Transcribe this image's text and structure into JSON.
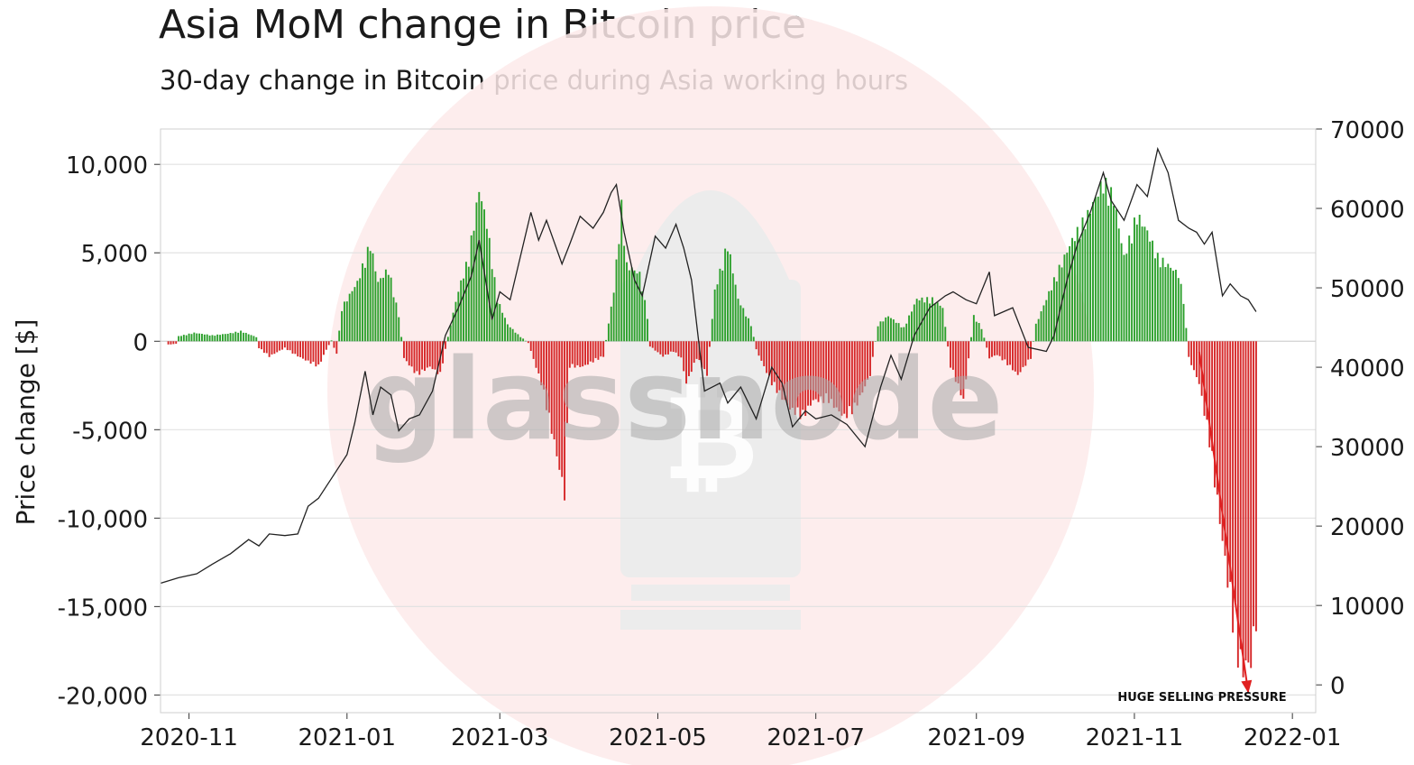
{
  "title": "Asia MoM change in Bitcoin price",
  "subtitle": "30-day change in Bitcoin price during Asia working hours",
  "watermark": {
    "text": "glassnode"
  },
  "chart_data": {
    "type": "bar",
    "ylabel": "Price change [$]",
    "x_ticks": [
      "2020-11",
      "2021-01",
      "2021-03",
      "2021-05",
      "2021-07",
      "2021-09",
      "2021-11",
      "2022-01"
    ],
    "y_ticks": [
      "10,000",
      "5,000",
      "0",
      "-5,000",
      "-10,000",
      "-15,000",
      "-20,000"
    ],
    "y2_ticks": [
      "70000",
      "60000",
      "50000",
      "40000",
      "30000",
      "20000",
      "10000",
      "0"
    ],
    "ylim": [
      -21000,
      12000
    ],
    "y2lim": [
      -3500,
      70000
    ],
    "xlim": [
      "2020-10-21",
      "2022-01-10"
    ],
    "grid": true,
    "colors": {
      "positive": "#2ca02c",
      "negative": "#d62728",
      "price": "#222222",
      "annotation": "#e02020"
    },
    "annotation": {
      "text": "HUGE SELLING PRESSURE",
      "arrow_from": [
        "2021-11-26",
        -600
      ],
      "arrow_to": [
        "2021-12-15",
        -19900
      ]
    },
    "bar_anchors": [
      [
        "2020-10-24",
        -200
      ],
      [
        "2020-10-27",
        -150
      ],
      [
        "2020-10-28",
        300
      ],
      [
        "2020-11-03",
        500
      ],
      [
        "2020-11-10",
        350
      ],
      [
        "2020-11-16",
        450
      ],
      [
        "2020-11-21",
        600
      ],
      [
        "2020-11-27",
        250
      ],
      [
        "2020-11-28",
        -400
      ],
      [
        "2020-12-02",
        -900
      ],
      [
        "2020-12-08",
        -400
      ],
      [
        "2020-12-12",
        -800
      ],
      [
        "2020-12-17",
        -1200
      ],
      [
        "2020-12-21",
        -1500
      ],
      [
        "2020-12-24",
        -500
      ],
      [
        "2020-12-26",
        50
      ],
      [
        "2020-12-28",
        -800
      ],
      [
        "2020-12-30",
        2000
      ],
      [
        "2021-01-05",
        3500
      ],
      [
        "2021-01-10",
        5800
      ],
      [
        "2021-01-13",
        3500
      ],
      [
        "2021-01-17",
        4300
      ],
      [
        "2021-01-21",
        1500
      ],
      [
        "2021-01-23",
        -1000
      ],
      [
        "2021-01-28",
        -2000
      ],
      [
        "2021-02-02",
        -1500
      ],
      [
        "2021-02-06",
        -2000
      ],
      [
        "2021-02-10",
        1000
      ],
      [
        "2021-02-13",
        3000
      ],
      [
        "2021-02-17",
        5000
      ],
      [
        "2021-02-21",
        9000
      ],
      [
        "2021-02-24",
        7000
      ],
      [
        "2021-02-28",
        2500
      ],
      [
        "2021-03-04",
        1000
      ],
      [
        "2021-03-08",
        400
      ],
      [
        "2021-03-12",
        -100
      ],
      [
        "2021-03-17",
        -2500
      ],
      [
        "2021-03-22",
        -6000
      ],
      [
        "2021-03-26",
        -9100
      ],
      [
        "2021-03-28",
        -1500
      ],
      [
        "2021-04-02",
        -1500
      ],
      [
        "2021-04-06",
        -1200
      ],
      [
        "2021-04-10",
        -900
      ],
      [
        "2021-04-14",
        3000
      ],
      [
        "2021-04-17",
        8000
      ],
      [
        "2021-04-19",
        4500
      ],
      [
        "2021-04-24",
        4000
      ],
      [
        "2021-04-27",
        1500
      ],
      [
        "2021-04-28",
        -300
      ],
      [
        "2021-05-03",
        -900
      ],
      [
        "2021-05-07",
        -600
      ],
      [
        "2021-05-10",
        -1000
      ],
      [
        "2021-05-12",
        -2500
      ],
      [
        "2021-05-16",
        -1000
      ],
      [
        "2021-05-20",
        -2000
      ],
      [
        "2021-05-23",
        3000
      ],
      [
        "2021-05-28",
        5800
      ],
      [
        "2021-06-01",
        2500
      ],
      [
        "2021-06-06",
        1000
      ],
      [
        "2021-06-08",
        -500
      ],
      [
        "2021-06-14",
        -2500
      ],
      [
        "2021-06-21",
        -4000
      ],
      [
        "2021-06-26",
        -4500
      ],
      [
        "2021-06-30",
        -3500
      ],
      [
        "2021-07-06",
        -3500
      ],
      [
        "2021-07-12",
        -4500
      ],
      [
        "2021-07-16",
        -4000
      ],
      [
        "2021-07-22",
        -2000
      ],
      [
        "2021-07-25",
        1000
      ],
      [
        "2021-07-29",
        1500
      ],
      [
        "2021-08-04",
        800
      ],
      [
        "2021-08-09",
        2500
      ],
      [
        "2021-08-15",
        2500
      ],
      [
        "2021-08-19",
        2000
      ],
      [
        "2021-08-22",
        -1500
      ],
      [
        "2021-08-27",
        -3500
      ],
      [
        "2021-08-31",
        1500
      ],
      [
        "2021-09-03",
        800
      ],
      [
        "2021-09-06",
        -1000
      ],
      [
        "2021-09-09",
        -800
      ],
      [
        "2021-09-14",
        -1500
      ],
      [
        "2021-09-17",
        -2000
      ],
      [
        "2021-09-22",
        -1000
      ],
      [
        "2021-09-24",
        1000
      ],
      [
        "2021-09-28",
        2500
      ],
      [
        "2021-10-02",
        4000
      ],
      [
        "2021-10-08",
        6000
      ],
      [
        "2021-10-14",
        7500
      ],
      [
        "2021-10-20",
        9500
      ],
      [
        "2021-10-24",
        8500
      ],
      [
        "2021-10-28",
        5000
      ],
      [
        "2021-11-02",
        7500
      ],
      [
        "2021-11-06",
        6500
      ],
      [
        "2021-11-10",
        5000
      ],
      [
        "2021-11-14",
        4500
      ],
      [
        "2021-11-18",
        4000
      ],
      [
        "2021-11-20",
        2500
      ],
      [
        "2021-11-22",
        -1000
      ],
      [
        "2021-11-26",
        -2500
      ],
      [
        "2021-11-30",
        -6000
      ],
      [
        "2021-12-03",
        -9500
      ],
      [
        "2021-12-06",
        -13000
      ],
      [
        "2021-12-09",
        -16500
      ],
      [
        "2021-12-12",
        -19500
      ],
      [
        "2021-12-16",
        -19000
      ],
      [
        "2021-12-18",
        -16500
      ]
    ],
    "price": [
      [
        "2020-10-21",
        12800
      ],
      [
        "2020-10-28",
        13500
      ],
      [
        "2020-11-04",
        14000
      ],
      [
        "2020-11-10",
        15200
      ],
      [
        "2020-11-17",
        16500
      ],
      [
        "2020-11-24",
        18300
      ],
      [
        "2020-11-28",
        17500
      ],
      [
        "2020-12-02",
        19000
      ],
      [
        "2020-12-08",
        18800
      ],
      [
        "2020-12-13",
        19000
      ],
      [
        "2020-12-17",
        22500
      ],
      [
        "2020-12-21",
        23500
      ],
      [
        "2020-12-26",
        26000
      ],
      [
        "2021-01-01",
        29000
      ],
      [
        "2021-01-04",
        33000
      ],
      [
        "2021-01-08",
        39500
      ],
      [
        "2021-01-11",
        34000
      ],
      [
        "2021-01-14",
        37500
      ],
      [
        "2021-01-18",
        36500
      ],
      [
        "2021-01-21",
        32000
      ],
      [
        "2021-01-25",
        33500
      ],
      [
        "2021-01-29",
        34000
      ],
      [
        "2021-02-03",
        37000
      ],
      [
        "2021-02-08",
        44000
      ],
      [
        "2021-02-13",
        47500
      ],
      [
        "2021-02-18",
        51500
      ],
      [
        "2021-02-21",
        56000
      ],
      [
        "2021-02-26",
        46000
      ],
      [
        "2021-03-01",
        49500
      ],
      [
        "2021-03-05",
        48500
      ],
      [
        "2021-03-13",
        59500
      ],
      [
        "2021-03-16",
        56000
      ],
      [
        "2021-03-19",
        58500
      ],
      [
        "2021-03-25",
        53000
      ],
      [
        "2021-03-28",
        55500
      ],
      [
        "2021-04-01",
        59000
      ],
      [
        "2021-04-06",
        57500
      ],
      [
        "2021-04-10",
        59500
      ],
      [
        "2021-04-13",
        62000
      ],
      [
        "2021-04-15",
        63000
      ],
      [
        "2021-04-18",
        57000
      ],
      [
        "2021-04-22",
        51000
      ],
      [
        "2021-04-25",
        49000
      ],
      [
        "2021-04-30",
        56500
      ],
      [
        "2021-05-04",
        55000
      ],
      [
        "2021-05-08",
        58000
      ],
      [
        "2021-05-11",
        55000
      ],
      [
        "2021-05-14",
        51000
      ],
      [
        "2021-05-19",
        37000
      ],
      [
        "2021-05-22",
        37500
      ],
      [
        "2021-05-25",
        38000
      ],
      [
        "2021-05-28",
        35500
      ],
      [
        "2021-06-02",
        37500
      ],
      [
        "2021-06-08",
        33500
      ],
      [
        "2021-06-14",
        40000
      ],
      [
        "2021-06-18",
        38000
      ],
      [
        "2021-06-22",
        32500
      ],
      [
        "2021-06-27",
        34500
      ],
      [
        "2021-07-01",
        33500
      ],
      [
        "2021-07-07",
        34000
      ],
      [
        "2021-07-13",
        32800
      ],
      [
        "2021-07-20",
        30000
      ],
      [
        "2021-07-26",
        37500
      ],
      [
        "2021-07-30",
        41500
      ],
      [
        "2021-08-03",
        38500
      ],
      [
        "2021-08-08",
        44000
      ],
      [
        "2021-08-14",
        47500
      ],
      [
        "2021-08-20",
        49000
      ],
      [
        "2021-08-23",
        49500
      ],
      [
        "2021-08-28",
        48500
      ],
      [
        "2021-09-01",
        48000
      ],
      [
        "2021-09-06",
        52000
      ],
      [
        "2021-09-08",
        46500
      ],
      [
        "2021-09-15",
        47500
      ],
      [
        "2021-09-21",
        42500
      ],
      [
        "2021-09-28",
        42000
      ],
      [
        "2021-10-01",
        44000
      ],
      [
        "2021-10-06",
        51000
      ],
      [
        "2021-10-10",
        55500
      ],
      [
        "2021-10-15",
        59500
      ],
      [
        "2021-10-20",
        64500
      ],
      [
        "2021-10-23",
        61000
      ],
      [
        "2021-10-28",
        58500
      ],
      [
        "2021-11-02",
        63000
      ],
      [
        "2021-11-06",
        61500
      ],
      [
        "2021-11-10",
        67500
      ],
      [
        "2021-11-14",
        64500
      ],
      [
        "2021-11-18",
        58500
      ],
      [
        "2021-11-22",
        57500
      ],
      [
        "2021-11-25",
        57000
      ],
      [
        "2021-11-28",
        55500
      ],
      [
        "2021-12-01",
        57000
      ],
      [
        "2021-12-05",
        49000
      ],
      [
        "2021-12-08",
        50500
      ],
      [
        "2021-12-12",
        49000
      ],
      [
        "2021-12-15",
        48500
      ],
      [
        "2021-12-18",
        47000
      ]
    ]
  }
}
